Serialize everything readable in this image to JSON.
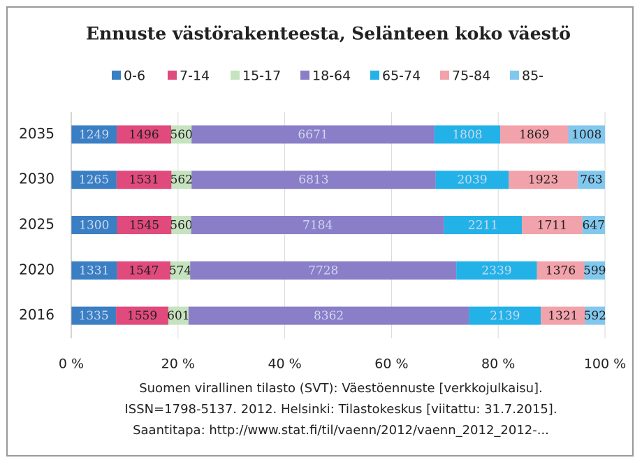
{
  "chart_data": {
    "type": "bar",
    "orientation": "horizontal",
    "stacked": "percent",
    "title": "Ennuste västörakenteesta, Selänteen koko väestö",
    "categories": [
      "2035",
      "2030",
      "2025",
      "2020",
      "2016"
    ],
    "series": [
      {
        "name": "0-6",
        "color": "#3a7fc4",
        "values": [
          1249,
          1265,
          1300,
          1331,
          1335
        ]
      },
      {
        "name": "7-14",
        "color": "#e04a7c",
        "values": [
          1496,
          1531,
          1545,
          1547,
          1559
        ]
      },
      {
        "name": "15-17",
        "color": "#c6e3bf",
        "values": [
          560,
          562,
          560,
          574,
          601
        ]
      },
      {
        "name": "18-64",
        "color": "#8a7ec8",
        "values": [
          6671,
          6813,
          7184,
          7728,
          8362
        ]
      },
      {
        "name": "65-74",
        "color": "#22b2e8",
        "values": [
          1808,
          2039,
          2211,
          2339,
          2139
        ]
      },
      {
        "name": "75-84",
        "color": "#f2a2aa",
        "values": [
          1869,
          1923,
          1711,
          1376,
          1321
        ]
      },
      {
        "name": "85-",
        "color": "#82c8ee",
        "values": [
          1008,
          763,
          647,
          599,
          592
        ]
      }
    ],
    "xlim": [
      0,
      100
    ],
    "xticks": [
      {
        "value": 0,
        "label": "0 %"
      },
      {
        "value": 20,
        "label": "20 %"
      },
      {
        "value": 40,
        "label": "40 %"
      },
      {
        "value": 60,
        "label": "60 %"
      },
      {
        "value": 80,
        "label": "80 %"
      },
      {
        "value": 100,
        "label": "100 %"
      }
    ],
    "grid": true,
    "legend": "top",
    "source": [
      "Suomen virallinen tilasto (SVT): Väestöennuste [verkkojulkaisu].",
      "ISSN=1798-5137. 2012. Helsinki: Tilastokeskus [viitattu: 31.7.2015].",
      "Saantitapa: http://www.stat.fi/til/vaenn/2012/vaenn_2012_2012-..."
    ]
  }
}
